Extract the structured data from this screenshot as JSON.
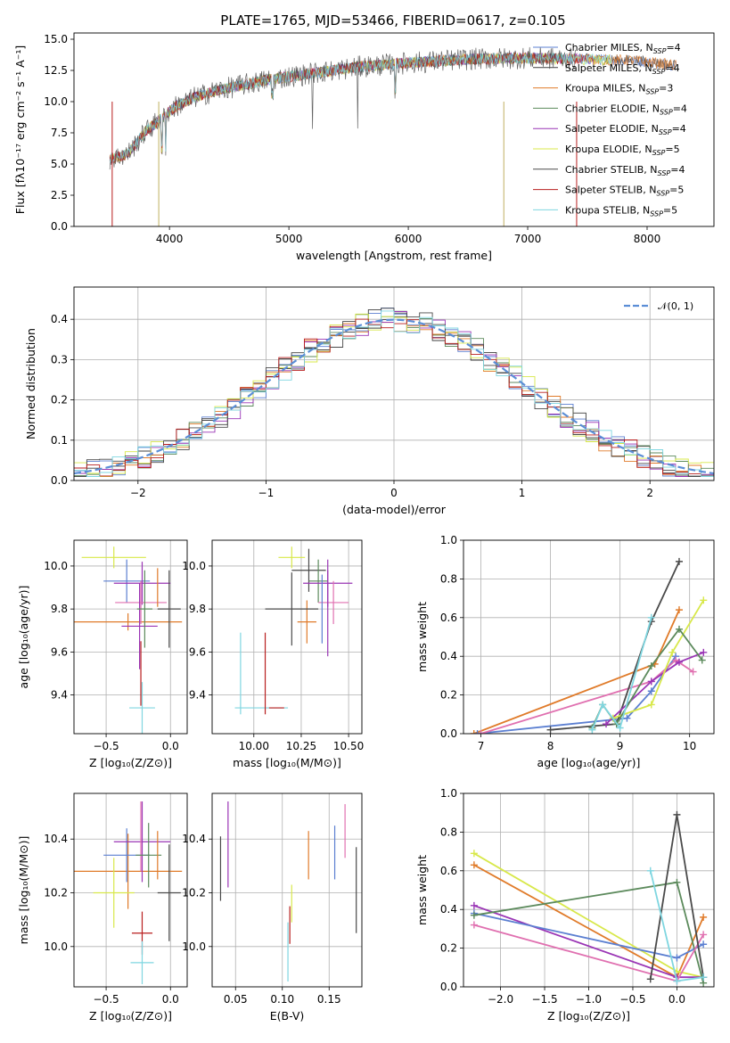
{
  "figure": {
    "title": "PLATE=1765, MJD=53466, FIBERID=0617, z=0.105"
  },
  "chart_data": [
    {
      "type": "line",
      "id": "spectrum",
      "xlabel": "wavelength [Angstrom, rest frame]",
      "ylabel": "Flux [fλ10⁻¹⁷ erg cm⁻² s⁻¹ A⁻¹]",
      "xlim": [
        3200,
        8560
      ],
      "ylim": [
        0,
        15.5
      ],
      "xticks": [
        4000,
        5000,
        6000,
        7000,
        8000
      ],
      "yticks": [
        0.0,
        2.5,
        5.0,
        7.5,
        10.0,
        12.5,
        15.0
      ],
      "continuum": {
        "x": [
          3500,
          3650,
          3800,
          3950,
          4050,
          4200,
          4400,
          4600,
          4800,
          5000,
          5300,
          5600,
          6000,
          6500,
          7000,
          7500,
          7900,
          8250
        ],
        "y": [
          5.4,
          5.8,
          7.6,
          8.8,
          9.6,
          10.3,
          10.9,
          11.3,
          11.7,
          12.0,
          12.4,
          12.8,
          13.1,
          13.4,
          13.5,
          13.4,
          13.3,
          12.9
        ]
      },
      "legend": [
        {
          "label": "Chabrier MILES, N",
          "sub": "SSP",
          "suffix": "=4",
          "color": "#5b7fd1"
        },
        {
          "label": "Salpeter MILES, N",
          "sub": "SSP",
          "suffix": "=4",
          "color": "#3f3f3f"
        },
        {
          "label": "Kroupa MILES, N",
          "sub": "SSP",
          "suffix": "=3",
          "color": "#e07b2a"
        },
        {
          "label": "Chabrier ELODIE, N",
          "sub": "SSP",
          "suffix": "=4",
          "color": "#5c8a5c"
        },
        {
          "label": "Salpeter ELODIE, N",
          "sub": "SSP",
          "suffix": "=4",
          "color": "#9a35b5"
        },
        {
          "label": "Kroupa ELODIE, N",
          "sub": "SSP",
          "suffix": "=5",
          "color": "#d8e84a"
        },
        {
          "label": "Chabrier STELIB, N",
          "sub": "SSP",
          "suffix": "=4",
          "color": "#4a4a4a"
        },
        {
          "label": "Salpeter STELIB, N",
          "sub": "SSP",
          "suffix": "=5",
          "color": "#b81e1e"
        },
        {
          "label": "Kroupa STELIB, N",
          "sub": "SSP",
          "suffix": "=5",
          "color": "#7fd6e0"
        }
      ]
    },
    {
      "type": "histogram",
      "id": "residuals",
      "xlabel": "(data-model)/error",
      "ylabel": "Normed distribution",
      "xlim": [
        -2.5,
        2.5
      ],
      "ylim": [
        0,
        0.48
      ],
      "xticks": [
        -2,
        -1,
        0,
        1,
        2
      ],
      "yticks": [
        0.0,
        0.1,
        0.2,
        0.3,
        0.4
      ],
      "reference": {
        "label": "𝒩(0, 1)",
        "mean": 0,
        "sigma": 1,
        "color": "#5b8ed6"
      },
      "bin_width": 0.1,
      "grid": true
    },
    {
      "type": "scatter",
      "id": "age_vs_Z",
      "xlabel": "Z [log₁₀(Z/Z⊙)]",
      "ylabel": "age  [log₁₀(age/yr)]",
      "xlim": [
        -0.75,
        0.13
      ],
      "ylim": [
        9.22,
        10.12
      ],
      "xticks": [
        -0.5,
        0.0
      ],
      "yticks": [
        9.4,
        9.6,
        9.8,
        10.0
      ],
      "points": [
        {
          "x": -0.33,
          "xerr": 0.42,
          "y": 9.74,
          "yerr": 0.04,
          "color": "#e07b2a"
        },
        {
          "x": -0.34,
          "xerr": 0.18,
          "y": 9.93,
          "yerr": 0.1,
          "color": "#5b7fd1"
        },
        {
          "x": -0.22,
          "xerr": 0.22,
          "y": 9.92,
          "yerr": 0.1,
          "color": "#9a35b5"
        },
        {
          "x": -0.23,
          "xerr": 0.2,
          "y": 9.83,
          "yerr": 0.1,
          "color": "#e070b0"
        },
        {
          "x": -0.44,
          "xerr": 0.25,
          "y": 10.04,
          "yerr": 0.05,
          "color": "#d8e84a"
        },
        {
          "x": -0.24,
          "xerr": 0.14,
          "y": 9.72,
          "yerr": 0.2,
          "color": "#9a35b5"
        },
        {
          "x": -0.2,
          "xerr": 0.06,
          "y": 9.8,
          "yerr": 0.18,
          "color": "#5c8a5c"
        },
        {
          "x": -0.1,
          "xerr": 0.0,
          "y": 9.9,
          "yerr": 0.09,
          "color": "#e07b2a"
        },
        {
          "x": -0.01,
          "xerr": 0.09,
          "y": 9.8,
          "yerr": 0.18,
          "color": "#4a4a4a"
        },
        {
          "x": -0.22,
          "xerr": 0.1,
          "y": 9.34,
          "yerr": 0.12,
          "color": "#7fd6e0"
        },
        {
          "x": -0.23,
          "xerr": 0.0,
          "y": 9.5,
          "yerr": 0.15,
          "color": "#b81e1e"
        }
      ]
    },
    {
      "type": "scatter",
      "id": "age_vs_mass",
      "xlabel": "mass [log₁₀(M/M⊙)]",
      "ylabel": "",
      "xlim": [
        9.78,
        10.57
      ],
      "ylim": [
        9.22,
        10.12
      ],
      "xticks": [
        10.0,
        10.25,
        10.5
      ],
      "yticks": [
        9.4,
        9.6,
        9.8,
        10.0
      ],
      "points": [
        {
          "x": 10.2,
          "xerr": 0.07,
          "y": 10.04,
          "yerr": 0.05,
          "color": "#d8e84a"
        },
        {
          "x": 10.29,
          "xerr": 0.09,
          "y": 9.98,
          "yerr": 0.1,
          "color": "#4a4a4a"
        },
        {
          "x": 10.34,
          "xerr": 0.05,
          "y": 9.93,
          "yerr": 0.1,
          "color": "#5c8a5c"
        },
        {
          "x": 10.39,
          "xerr": 0.13,
          "y": 9.92,
          "yerr": 0.11,
          "color": "#9a35b5"
        },
        {
          "x": 10.42,
          "xerr": 0.08,
          "y": 9.83,
          "yerr": 0.1,
          "color": "#e070b0"
        },
        {
          "x": 10.28,
          "xerr": 0.05,
          "y": 9.74,
          "yerr": 0.1,
          "color": "#e07b2a"
        },
        {
          "x": 10.2,
          "xerr": 0.14,
          "y": 9.8,
          "yerr": 0.17,
          "color": "#4a4a4a"
        },
        {
          "x": 10.36,
          "xerr": 0.0,
          "y": 9.8,
          "yerr": 0.16,
          "color": "#5b7fd1"
        },
        {
          "x": 10.39,
          "xerr": 0.0,
          "y": 9.78,
          "yerr": 0.2,
          "color": "#9a35b5"
        },
        {
          "x": 10.04,
          "xerr": 0.14,
          "y": 9.34,
          "yerr": 0.0,
          "color": "#7fd6e0"
        },
        {
          "x": 9.93,
          "xerr": 0.0,
          "y": 9.5,
          "yerr": 0.19,
          "color": "#7fd6e0"
        },
        {
          "x": 10.06,
          "xerr": 0.0,
          "y": 9.5,
          "yerr": 0.19,
          "color": "#b81e1e"
        },
        {
          "x": 10.12,
          "xerr": 0.04,
          "y": 9.34,
          "yerr": 0.0,
          "color": "#b81e1e"
        }
      ]
    },
    {
      "type": "line",
      "id": "massweight_vs_age",
      "xlabel": "age  [log₁₀(age/yr)]",
      "ylabel": "mass weight",
      "xlim": [
        6.75,
        10.35
      ],
      "ylim": [
        0,
        1
      ],
      "xticks": [
        7,
        8,
        9,
        10
      ],
      "yticks": [
        0.0,
        0.2,
        0.4,
        0.6,
        0.8,
        1.0
      ],
      "series": [
        {
          "color": "#e07b2a",
          "x": [
            6.9,
            9.5,
            9.85
          ],
          "y": [
            0.0,
            0.36,
            0.64
          ]
        },
        {
          "color": "#5b7fd1",
          "x": [
            6.95,
            9.1,
            9.45,
            9.8
          ],
          "y": [
            0.0,
            0.08,
            0.22,
            0.4
          ]
        },
        {
          "color": "#e070b0",
          "x": [
            7.0,
            9.45,
            9.8,
            10.05
          ],
          "y": [
            0.0,
            0.27,
            0.38,
            0.32
          ]
        },
        {
          "color": "#4a4a4a",
          "x": [
            8.0,
            8.95,
            9.45,
            9.85
          ],
          "y": [
            0.02,
            0.05,
            0.58,
            0.89
          ]
        },
        {
          "color": "#9a35b5",
          "x": [
            8.8,
            9.45,
            9.85,
            10.2
          ],
          "y": [
            0.05,
            0.27,
            0.37,
            0.42
          ]
        },
        {
          "color": "#d8e84a",
          "x": [
            8.9,
            9.45,
            9.75,
            10.2
          ],
          "y": [
            0.08,
            0.15,
            0.42,
            0.69
          ]
        },
        {
          "color": "#5c8a5c",
          "x": [
            8.6,
            8.75,
            8.95,
            9.45,
            9.85,
            10.18
          ],
          "y": [
            0.03,
            0.15,
            0.05,
            0.35,
            0.54,
            0.38
          ]
        },
        {
          "color": "#7fd6e0",
          "x": [
            8.6,
            8.75,
            9.0,
            9.45
          ],
          "y": [
            0.02,
            0.15,
            0.03,
            0.6
          ]
        }
      ]
    },
    {
      "type": "scatter",
      "id": "mass_vs_Z",
      "xlabel": "Z [log₁₀(Z/Z⊙)]",
      "ylabel": "mass [log₁₀(M/M⊙)]",
      "xlim": [
        -0.75,
        0.13
      ],
      "ylim": [
        9.85,
        10.57
      ],
      "xticks": [
        -0.5,
        0.0
      ],
      "yticks": [
        10.0,
        10.2,
        10.4
      ],
      "points": [
        {
          "x": -0.33,
          "xerr": 0.42,
          "y": 10.28,
          "yerr": 0.14,
          "color": "#e07b2a"
        },
        {
          "x": -0.34,
          "xerr": 0.18,
          "y": 10.34,
          "yerr": 0.1,
          "color": "#5b7fd1"
        },
        {
          "x": -0.22,
          "xerr": 0.22,
          "y": 10.39,
          "yerr": 0.15,
          "color": "#9a35b5"
        },
        {
          "x": -0.23,
          "xerr": 0.0,
          "y": 10.41,
          "yerr": 0.13,
          "color": "#e070b0"
        },
        {
          "x": -0.44,
          "xerr": 0.16,
          "y": 10.2,
          "yerr": 0.13,
          "color": "#d8e84a"
        },
        {
          "x": -0.17,
          "xerr": 0.1,
          "y": 10.34,
          "yerr": 0.12,
          "color": "#5c8a5c"
        },
        {
          "x": -0.1,
          "xerr": 0.0,
          "y": 10.34,
          "yerr": 0.09,
          "color": "#e07b2a"
        },
        {
          "x": -0.01,
          "xerr": 0.09,
          "y": 10.2,
          "yerr": 0.18,
          "color": "#4a4a4a"
        },
        {
          "x": -0.22,
          "xerr": 0.08,
          "y": 10.05,
          "yerr": 0.08,
          "color": "#b81e1e"
        },
        {
          "x": -0.22,
          "xerr": 0.09,
          "y": 9.94,
          "yerr": 0.08,
          "color": "#7fd6e0"
        }
      ]
    },
    {
      "type": "scatter",
      "id": "mass_vs_EBV",
      "xlabel": "E(B-V)",
      "ylabel": "",
      "xlim": [
        0.025,
        0.185
      ],
      "ylim": [
        9.85,
        10.57
      ],
      "xticks": [
        0.05,
        0.1,
        0.15
      ],
      "yticks": [
        10.0,
        10.2,
        10.4
      ],
      "points": [
        {
          "x": 0.034,
          "y": 10.29,
          "yerr": 0.12,
          "color": "#4a4a4a"
        },
        {
          "x": 0.042,
          "y": 10.38,
          "yerr": 0.16,
          "color": "#9a35b5"
        },
        {
          "x": 0.106,
          "y": 9.98,
          "yerr": 0.11,
          "color": "#7fd6e0"
        },
        {
          "x": 0.108,
          "y": 10.08,
          "yerr": 0.07,
          "color": "#b81e1e"
        },
        {
          "x": 0.11,
          "y": 10.16,
          "yerr": 0.07,
          "color": "#d8e84a"
        },
        {
          "x": 0.128,
          "y": 10.34,
          "yerr": 0.09,
          "color": "#e07b2a"
        },
        {
          "x": 0.156,
          "y": 10.35,
          "yerr": 0.1,
          "color": "#5b7fd1"
        },
        {
          "x": 0.167,
          "y": 10.43,
          "yerr": 0.1,
          "color": "#e070b0"
        },
        {
          "x": 0.179,
          "y": 10.21,
          "yerr": 0.16,
          "color": "#4a4a4a"
        }
      ]
    },
    {
      "type": "line",
      "id": "massweight_vs_Z",
      "xlabel": "Z [log₁₀(Z/Z⊙)]",
      "ylabel": "mass weight",
      "xlim": [
        -2.42,
        0.42
      ],
      "ylim": [
        0,
        1
      ],
      "xticks": [
        -2.0,
        -1.5,
        -1.0,
        -0.5,
        0.0
      ],
      "yticks": [
        0.0,
        0.2,
        0.4,
        0.6,
        0.8,
        1.0
      ],
      "series": [
        {
          "color": "#e07b2a",
          "x": [
            -2.3,
            0.0,
            0.3
          ],
          "y": [
            0.63,
            0.05,
            0.36
          ]
        },
        {
          "color": "#d8e84a",
          "x": [
            -2.3,
            0.0,
            0.3
          ],
          "y": [
            0.69,
            0.08,
            0.05
          ]
        },
        {
          "color": "#9a35b5",
          "x": [
            -2.3,
            0.0,
            0.3
          ],
          "y": [
            0.42,
            0.05,
            0.05
          ]
        },
        {
          "color": "#5b7fd1",
          "x": [
            -2.3,
            0.0,
            0.3
          ],
          "y": [
            0.38,
            0.15,
            0.22
          ]
        },
        {
          "color": "#5c8a5c",
          "x": [
            -2.3,
            0.0,
            0.3
          ],
          "y": [
            0.37,
            0.54,
            0.02
          ]
        },
        {
          "color": "#e070b0",
          "x": [
            -2.3,
            0.0,
            0.3
          ],
          "y": [
            0.32,
            0.03,
            0.27
          ]
        },
        {
          "color": "#4a4a4a",
          "x": [
            -0.3,
            0.0,
            0.3
          ],
          "y": [
            0.04,
            0.89,
            0.05
          ]
        },
        {
          "color": "#7fd6e0",
          "x": [
            -0.3,
            0.0,
            0.3
          ],
          "y": [
            0.6,
            0.03,
            0.05
          ]
        }
      ]
    }
  ]
}
